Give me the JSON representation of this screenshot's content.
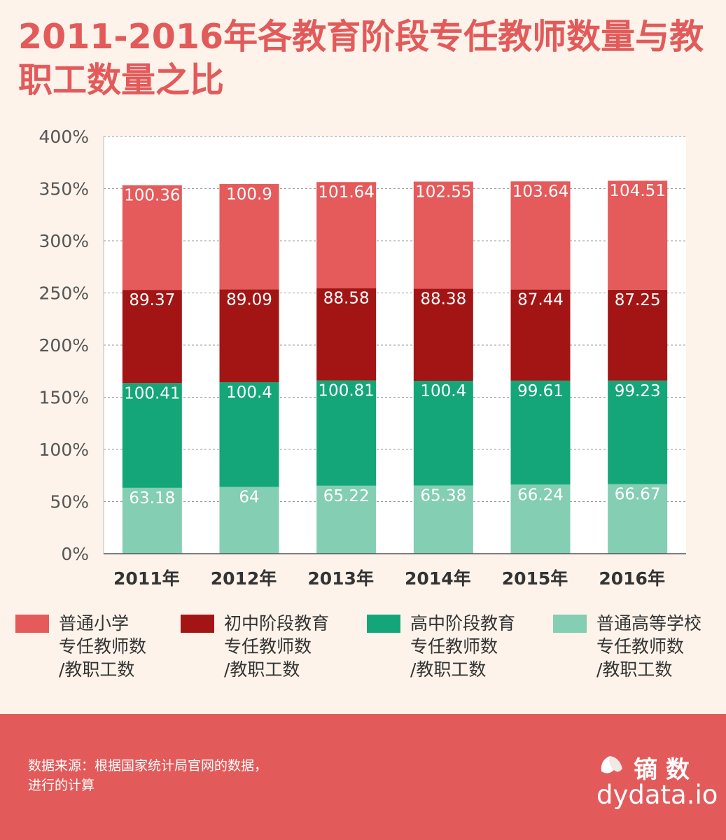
{
  "chart_data": {
    "type": "bar",
    "stacked": true,
    "title": "2011-2016年各教育阶段专任教师数量与教职工数量之比",
    "categories": [
      "2011年",
      "2012年",
      "2013年",
      "2014年",
      "2015年",
      "2016年"
    ],
    "series": [
      {
        "name": "普通高等学校\n专任教师数\n/教职工数",
        "color": "#84ceb3",
        "values": [
          63.18,
          64,
          65.22,
          65.38,
          66.24,
          66.67
        ]
      },
      {
        "name": "高中阶段教育\n专任教师数\n/教职工数",
        "color": "#14a679",
        "values": [
          100.41,
          100.4,
          100.81,
          100.4,
          99.61,
          99.23
        ]
      },
      {
        "name": "初中阶段教育\n专任教师数\n/教职工数",
        "color": "#a31515",
        "values": [
          89.37,
          89.09,
          88.58,
          88.38,
          87.44,
          87.25
        ]
      },
      {
        "name": "普通小学\n专任教师数\n/教职工数",
        "color": "#e55a5a",
        "values": [
          100.36,
          100.9,
          101.64,
          102.55,
          103.64,
          104.51
        ]
      }
    ],
    "ylim": [
      0,
      400
    ],
    "yticks": [
      "0%",
      "50%",
      "100%",
      "150%",
      "200%",
      "250%",
      "300%",
      "350%",
      "400%"
    ],
    "grid": true,
    "legend_position": "bottom"
  },
  "legend_order": [
    3,
    2,
    1,
    0
  ],
  "footer": {
    "source": "数据来源：根据国家统计局官网的数据，\n进行的计算",
    "logo_cn": "镝数",
    "logo_en": "dydata.io"
  }
}
